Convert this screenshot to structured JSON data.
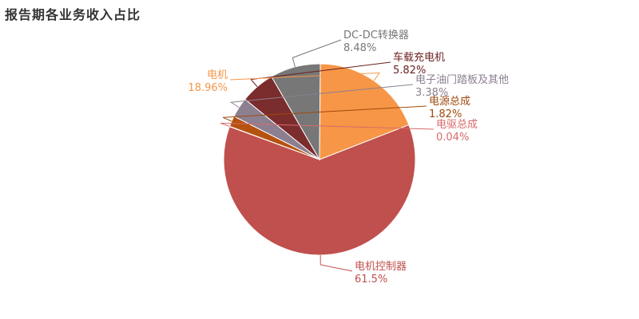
{
  "chart_data": {
    "type": "pie",
    "title": "报告期各业务收入占比",
    "legend": "none",
    "slices": [
      {
        "name": "电机控制器",
        "label": "61.5%",
        "value": 61.5,
        "color": "#c0504d"
      },
      {
        "name": "电驱总成",
        "label": "0.04%",
        "value": 0.04,
        "color": "#d9696a"
      },
      {
        "name": "电源总成",
        "label": "1.82%",
        "value": 1.82,
        "color": "#b5520f"
      },
      {
        "name": "电子油门踏板及其他",
        "label": "3.38%",
        "value": 3.38,
        "color": "#8c7f90"
      },
      {
        "name": "车载充电机",
        "label": "5.82%",
        "value": 5.82,
        "color": "#7b2c2c"
      },
      {
        "name": "DC-DC转换器",
        "label": "8.48%",
        "value": 8.48,
        "color": "#777777"
      },
      {
        "name": "电机",
        "label": "18.96%",
        "value": 18.96,
        "color": "#f79646"
      }
    ],
    "label_colors": {
      "电机控制器": "#c0504d",
      "电驱总成": "#d9696a",
      "电源总成": "#a14a0c",
      "电子油门踏板及其他": "#8c7f90",
      "车载充电机": "#6b1e1e",
      "DC-DC转换器": "#777777",
      "电机": "#f79646"
    }
  }
}
